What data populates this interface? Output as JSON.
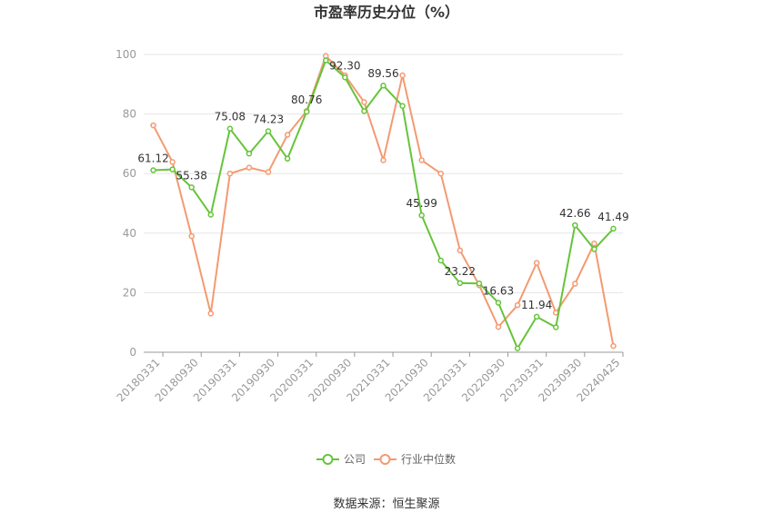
{
  "chart_data": {
    "type": "line",
    "title": "市盈率历史分位（%）",
    "ylim": [
      0,
      100
    ],
    "yticks": [
      0,
      20,
      40,
      60,
      80,
      100
    ],
    "grid": true,
    "legend_placement": "bottom",
    "x": [
      "20180331",
      "20180630",
      "20180930",
      "20181231",
      "20190331",
      "20190630",
      "20190930",
      "20191231",
      "20200331",
      "20200630",
      "20200930",
      "20201231",
      "20210331",
      "20210630",
      "20210930",
      "20211231",
      "20220331",
      "20220630",
      "20220930",
      "20221231",
      "20230331",
      "20230630",
      "20230930",
      "20231231",
      "20240425"
    ],
    "xtick_labels": [
      "20180331",
      "20180930",
      "20190331",
      "20190930",
      "20200331",
      "20200930",
      "20210331",
      "20210930",
      "20220331",
      "20220930",
      "20230331",
      "20230930",
      "20240425"
    ],
    "series": [
      {
        "name": "公司",
        "color": "#66c43a",
        "values": [
          61.12,
          61.4,
          55.38,
          46.2,
          75.08,
          66.7,
          74.23,
          65.0,
          80.76,
          98.0,
          92.3,
          81.0,
          89.56,
          82.7,
          45.99,
          30.8,
          23.22,
          23.1,
          16.63,
          1.3,
          11.94,
          8.4,
          42.66,
          34.6,
          41.49
        ],
        "labels": {
          "0": "61.12",
          "2": "55.38",
          "4": "75.08",
          "6": "74.23",
          "8": "80.76",
          "10": "92.30",
          "12": "89.56",
          "14": "45.99",
          "16": "23.22",
          "18": "16.63",
          "20": "11.94",
          "22": "42.66",
          "24": "41.49"
        }
      },
      {
        "name": "行业中位数",
        "color": "#f39a72",
        "values": [
          76.2,
          63.9,
          39.0,
          13.0,
          60.0,
          62.0,
          60.5,
          73.0,
          81.0,
          99.5,
          93.0,
          84.0,
          64.5,
          93.0,
          64.5,
          60.0,
          34.2,
          22.5,
          8.5,
          15.8,
          30.0,
          13.3,
          23.0,
          36.5,
          2.1
        ]
      }
    ]
  },
  "source": "数据来源：恒生聚源"
}
